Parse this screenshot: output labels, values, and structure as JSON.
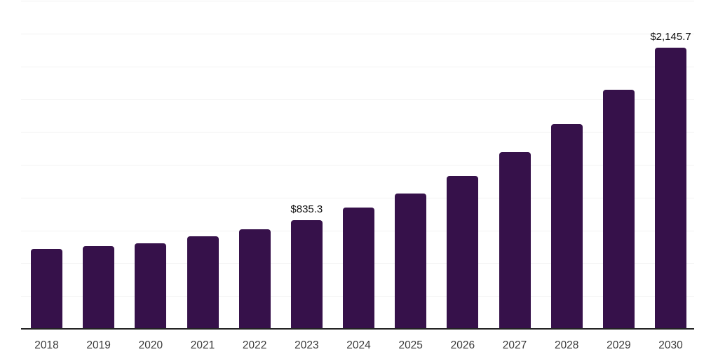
{
  "chart_data": {
    "type": "bar",
    "title": "",
    "xlabel": "",
    "ylabel": "",
    "categories": [
      "2018",
      "2019",
      "2020",
      "2021",
      "2022",
      "2023",
      "2024",
      "2025",
      "2026",
      "2027",
      "2028",
      "2029",
      "2030"
    ],
    "values": [
      615,
      635,
      655,
      710,
      765,
      835.3,
      930,
      1035,
      1170,
      1350,
      1565,
      1825,
      2145.7
    ],
    "value_labels": [
      "",
      "",
      "",
      "",
      "",
      "$835.3",
      "",
      "",
      "",
      "",
      "",
      "",
      "$2,145.7"
    ],
    "ylim": [
      0,
      2500
    ],
    "grid": {
      "horizontal": true,
      "step": 250,
      "y_tick_labels_shown": false
    },
    "legend_position": "none"
  },
  "styles": {
    "background": "#ffffff",
    "bar_color": "#36114a",
    "grid_color": "#f2f2f2",
    "axis_color": "#242424",
    "tick_label_color": "#3a3a3a",
    "data_label_color": "#111111"
  }
}
